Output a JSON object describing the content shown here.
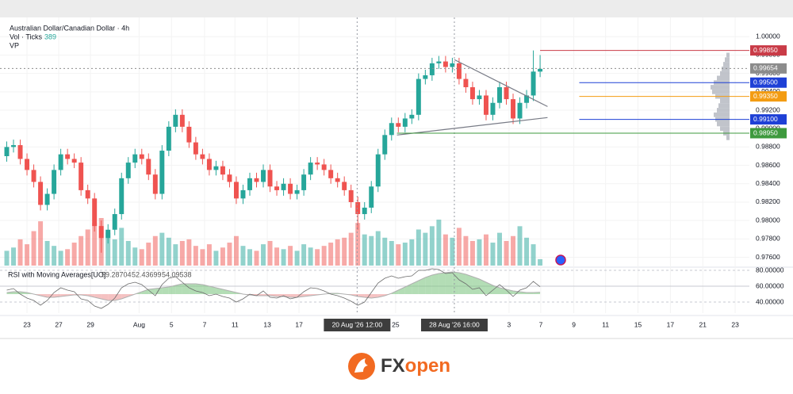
{
  "chart_data": {
    "type": "candlestick",
    "title": "Australian Dollar/Canadian Dollar · 4h",
    "volume_label": "Vol · Ticks",
    "volume_readout": "389",
    "vp_label": "VP",
    "up_color": "#26a69a",
    "down_color": "#ef5350",
    "xlim": [
      -1,
      110
    ],
    "ylim": [
      0.9751,
      1.0014
    ],
    "yticks": [
      {
        "value": 1.0,
        "label": "1.00000"
      },
      {
        "value": 0.998,
        "label": "0.99800"
      },
      {
        "value": 0.996,
        "label": "0.99600"
      },
      {
        "value": 0.994,
        "label": "0.99400"
      },
      {
        "value": 0.992,
        "label": "0.99200"
      },
      {
        "value": 0.99,
        "label": "0.99000"
      },
      {
        "value": 0.988,
        "label": "0.98800"
      },
      {
        "value": 0.986,
        "label": "0.98600"
      },
      {
        "value": 0.984,
        "label": "0.98400"
      },
      {
        "value": 0.982,
        "label": "0.98200"
      },
      {
        "value": 0.98,
        "label": "0.98000"
      },
      {
        "value": 0.978,
        "label": "0.97800"
      },
      {
        "value": 0.976,
        "label": "0.97600"
      }
    ],
    "xticks": [
      {
        "value": 3.0,
        "label": "23"
      },
      {
        "value": 7.7,
        "label": "27"
      },
      {
        "value": 12.4,
        "label": "29"
      },
      {
        "value": 19.6,
        "label": "Aug"
      },
      {
        "value": 24.4,
        "label": "5"
      },
      {
        "value": 29.3,
        "label": "7"
      },
      {
        "value": 33.8,
        "label": "11"
      },
      {
        "value": 38.6,
        "label": "13"
      },
      {
        "value": 43.3,
        "label": "17"
      },
      {
        "value": 57.6,
        "label": "25"
      },
      {
        "value": 74.4,
        "label": "3"
      },
      {
        "value": 79.1,
        "label": "7"
      },
      {
        "value": 84.0,
        "label": "9"
      },
      {
        "value": 88.7,
        "label": "11"
      },
      {
        "value": 93.5,
        "label": "15"
      },
      {
        "value": 98.3,
        "label": "17"
      },
      {
        "value": 103.1,
        "label": "21"
      },
      {
        "value": 107.9,
        "label": "23"
      }
    ],
    "crosshair_x": [
      {
        "value": 51.9,
        "label": "20 Aug '26  12:00"
      },
      {
        "value": 66.3,
        "label": "28 Aug '26  16:00"
      }
    ],
    "open": [
      0.987,
      0.988,
      0.9882,
      0.9867,
      0.9855,
      0.9842,
      0.9817,
      0.9829,
      0.9855,
      0.9872,
      0.9867,
      0.9863,
      0.9833,
      0.9824,
      0.9794,
      0.9781,
      0.979,
      0.9807,
      0.9846,
      0.9863,
      0.9872,
      0.9867,
      0.985,
      0.9829,
      0.9876,
      0.9902,
      0.9915,
      0.9902,
      0.9885,
      0.9872,
      0.9867,
      0.9855,
      0.9859,
      0.985,
      0.9842,
      0.9824,
      0.9833,
      0.9846,
      0.9842,
      0.9855,
      0.9837,
      0.9833,
      0.984,
      0.9829,
      0.9833,
      0.985,
      0.9863,
      0.9861,
      0.9855,
      0.9846,
      0.9842,
      0.9833,
      0.982,
      0.9807,
      0.9814,
      0.9837,
      0.9872,
      0.9893,
      0.9906,
      0.9902,
      0.9911,
      0.9915,
      0.9954,
      0.9958,
      0.9971,
      0.9973,
      0.9967,
      0.9971,
      0.9954,
      0.9945,
      0.9932,
      0.9936,
      0.9915,
      0.9928,
      0.9945,
      0.9932,
      0.9911,
      0.9928,
      0.9936,
      0.9962
    ],
    "high": [
      0.9886,
      0.9888,
      0.9888,
      0.9873,
      0.9861,
      0.9848,
      0.9835,
      0.9861,
      0.9878,
      0.9878,
      0.9873,
      0.9869,
      0.9839,
      0.983,
      0.98,
      0.9796,
      0.9813,
      0.9852,
      0.9869,
      0.9878,
      0.9878,
      0.9873,
      0.9856,
      0.9882,
      0.9908,
      0.9921,
      0.9921,
      0.9908,
      0.9891,
      0.9878,
      0.9873,
      0.9865,
      0.9865,
      0.9856,
      0.9848,
      0.9839,
      0.9852,
      0.9852,
      0.9861,
      0.9861,
      0.9843,
      0.9846,
      0.9846,
      0.9839,
      0.9856,
      0.9869,
      0.9869,
      0.9867,
      0.9861,
      0.9852,
      0.9848,
      0.9839,
      0.9826,
      0.982,
      0.9843,
      0.9878,
      0.9899,
      0.9912,
      0.9912,
      0.9917,
      0.9921,
      0.996,
      0.9964,
      0.9977,
      0.9979,
      0.9979,
      0.9977,
      0.9977,
      0.996,
      0.9951,
      0.9942,
      0.9942,
      0.9934,
      0.9951,
      0.9951,
      0.9938,
      0.9934,
      0.9942,
      0.9985,
      0.998
    ],
    "low": [
      0.9864,
      0.9874,
      0.9861,
      0.9849,
      0.9836,
      0.9811,
      0.9811,
      0.9823,
      0.9849,
      0.9861,
      0.9857,
      0.9827,
      0.9818,
      0.9788,
      0.9765,
      0.9775,
      0.9784,
      0.9801,
      0.984,
      0.9857,
      0.9861,
      0.9844,
      0.9823,
      0.9823,
      0.987,
      0.9896,
      0.9896,
      0.9879,
      0.9866,
      0.9861,
      0.9849,
      0.9849,
      0.9844,
      0.9836,
      0.9818,
      0.9818,
      0.9827,
      0.9836,
      0.9836,
      0.9831,
      0.9827,
      0.9827,
      0.9823,
      0.9823,
      0.9827,
      0.9844,
      0.9855,
      0.9849,
      0.984,
      0.9836,
      0.9827,
      0.9814,
      0.979,
      0.9801,
      0.9808,
      0.9831,
      0.9866,
      0.9887,
      0.9896,
      0.9896,
      0.9905,
      0.9909,
      0.9948,
      0.9952,
      0.9965,
      0.9961,
      0.9961,
      0.9948,
      0.9939,
      0.9926,
      0.9926,
      0.9909,
      0.9909,
      0.9922,
      0.9926,
      0.9905,
      0.9905,
      0.9922,
      0.993,
      0.9956
    ],
    "close": [
      0.988,
      0.9882,
      0.9867,
      0.9855,
      0.9842,
      0.9817,
      0.9829,
      0.9855,
      0.9872,
      0.9867,
      0.9863,
      0.9833,
      0.9824,
      0.9794,
      0.9781,
      0.979,
      0.9807,
      0.9846,
      0.9863,
      0.9872,
      0.9867,
      0.985,
      0.9829,
      0.9876,
      0.9902,
      0.9915,
      0.9902,
      0.9885,
      0.9872,
      0.9867,
      0.9855,
      0.9859,
      0.985,
      0.9842,
      0.9824,
      0.9833,
      0.9846,
      0.9842,
      0.9855,
      0.9837,
      0.9833,
      0.984,
      0.9829,
      0.9833,
      0.985,
      0.9863,
      0.9861,
      0.9855,
      0.9846,
      0.9842,
      0.9833,
      0.982,
      0.9807,
      0.9814,
      0.9837,
      0.9872,
      0.9893,
      0.9906,
      0.9902,
      0.9911,
      0.9915,
      0.9954,
      0.9958,
      0.9971,
      0.9973,
      0.9967,
      0.9971,
      0.9954,
      0.9945,
      0.9932,
      0.9936,
      0.9915,
      0.9928,
      0.9945,
      0.9932,
      0.9911,
      0.9928,
      0.9936,
      0.9962,
      0.9965
    ],
    "volume": [
      900,
      1100,
      1600,
      1300,
      2100,
      2700,
      1500,
      1200,
      900,
      1000,
      1400,
      1800,
      2200,
      2600,
      2900,
      2000,
      1600,
      2300,
      1500,
      1100,
      1000,
      1400,
      1800,
      2000,
      1700,
      1300,
      1500,
      1600,
      1200,
      1000,
      1300,
      900,
      1100,
      1400,
      1800,
      1200,
      1000,
      900,
      1300,
      1500,
      1100,
      1000,
      1200,
      900,
      1300,
      1100,
      1000,
      1200,
      1400,
      1600,
      1700,
      2000,
      2600,
      1900,
      1800,
      2100,
      1700,
      1500,
      1300,
      1400,
      1600,
      2200,
      2000,
      2400,
      2800,
      1900,
      1700,
      2300,
      1800,
      1500,
      1600,
      1900,
      1400,
      2000,
      1500,
      1800,
      2400,
      1700,
      1300,
      389
    ],
    "price_levels": [
      {
        "value": 0.9985,
        "label": "0.99850",
        "color": "#c93b47",
        "x0": 79
      },
      {
        "value": 0.99654,
        "label": "0.99654",
        "color": "#8c8c8c"
      },
      {
        "value": 0.995,
        "label": "0.99500",
        "color": "#1e40d6",
        "x0": 84.8
      },
      {
        "value": 0.9935,
        "label": "0.99350",
        "color": "#f39c12",
        "x0": 84.8
      },
      {
        "value": 0.991,
        "label": "0.99100",
        "color": "#1e40d6",
        "x0": 84.8
      },
      {
        "value": 0.9895,
        "label": "0.98950",
        "color": "#3e9a3e",
        "x0": 57.8
      }
    ],
    "trendlines": [
      {
        "x": [
          66.3,
          80.1
        ],
        "y": [
          0.9975,
          0.9924
        ]
      },
      {
        "x": [
          57.8,
          80.1
        ],
        "y": [
          0.9893,
          0.9912
        ]
      }
    ],
    "volume_profile": {
      "prices": [
        0.989,
        0.9895,
        0.99,
        0.9905,
        0.991,
        0.9915,
        0.992,
        0.9925,
        0.993,
        0.9935,
        0.994,
        0.9945,
        0.995,
        0.9955,
        0.996,
        0.9965,
        0.997,
        0.9975,
        0.998
      ],
      "values": [
        10,
        20,
        30,
        40,
        45,
        50,
        40,
        35,
        30,
        45,
        55,
        60,
        50,
        40,
        30,
        25,
        20,
        15,
        10
      ]
    },
    "rsi_title": "RSI with Moving Averages[UO]",
    "rsi_readout": [
      59.28704,
      52.43699,
      54.09538
    ],
    "rsi_ylim": [
      26,
      83
    ],
    "rsi_yticks": [
      {
        "value": 80,
        "label": "80.00000"
      },
      {
        "value": 60,
        "label": "60.00000"
      },
      {
        "value": 40,
        "label": "40.00000"
      }
    ],
    "rsi": [
      55,
      57,
      50,
      45,
      42,
      36,
      42,
      52,
      58,
      55,
      53,
      44,
      42,
      35,
      32,
      37,
      45,
      58,
      63,
      65,
      62,
      55,
      48,
      62,
      70,
      72,
      65,
      58,
      54,
      52,
      48,
      50,
      47,
      45,
      40,
      44,
      50,
      48,
      54,
      46,
      45,
      48,
      44,
      46,
      53,
      58,
      57,
      54,
      50,
      48,
      45,
      41,
      36,
      40,
      52,
      64,
      70,
      73,
      70,
      72,
      73,
      80,
      80,
      82,
      81,
      76,
      77,
      68,
      63,
      56,
      58,
      48,
      55,
      62,
      55,
      47,
      55,
      58,
      66,
      59.28704
    ],
    "rsi_ma": [
      52,
      53,
      53,
      52,
      50,
      48,
      46,
      46,
      47,
      48,
      49,
      49,
      48,
      46,
      44,
      42,
      42,
      44,
      47,
      50,
      53,
      56,
      57,
      58,
      59,
      61,
      63,
      63,
      63,
      62,
      60,
      58,
      56,
      54,
      52,
      50,
      49,
      48,
      48,
      48,
      47,
      47,
      46,
      46,
      47,
      48,
      49,
      50,
      51,
      51,
      50,
      49,
      47,
      46,
      45,
      46,
      48,
      51,
      55,
      59,
      63,
      67,
      71,
      74,
      76,
      77,
      78,
      77,
      75,
      72,
      69,
      65,
      61,
      58,
      56,
      54,
      53,
      52,
      52,
      52.43699
    ],
    "brand": [
      "FX",
      "open"
    ]
  }
}
